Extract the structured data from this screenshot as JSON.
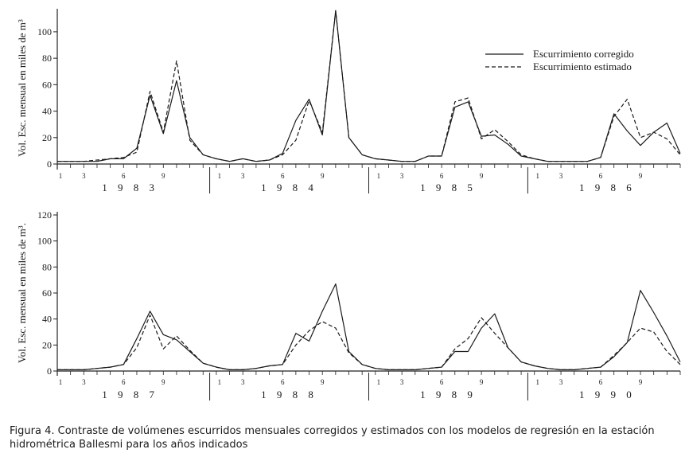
{
  "caption": "Figura 4. Contraste de volúmenes escurridos mensuales corregidos y estimados con los modelos de regresión en la estación hidrométrica Ballesmi para los años indicados",
  "chart_data": [
    {
      "type": "line",
      "ylabel": "Vol. Esc. mensual en miles de m³",
      "ylim": [
        0,
        115
      ],
      "yticks": [
        0,
        20,
        40,
        60,
        80,
        100
      ],
      "years": [
        "1 9 8 3",
        "1 9 8 4",
        "1 9 8 5",
        "1 9 8 6"
      ],
      "month_labels": [
        "1",
        "3",
        "6",
        "9"
      ],
      "month_label_positions": [
        1,
        3,
        6,
        9
      ],
      "legend": {
        "placement": "top-right",
        "entries": [
          "Escurrimiento corregido",
          "Escurrimiento estimado"
        ]
      },
      "series": [
        {
          "name": "Escurrimiento corregido",
          "style": "solid",
          "values": [
            2,
            2,
            2,
            2,
            4,
            4,
            12,
            52,
            23,
            63,
            20,
            7,
            4,
            2,
            4,
            2,
            3,
            8,
            33,
            49,
            22,
            116,
            20,
            7,
            4,
            3,
            2,
            2,
            6,
            6,
            43,
            47,
            21,
            22,
            15,
            6,
            4,
            2,
            2,
            2,
            2,
            5,
            38,
            25,
            14,
            24,
            31,
            8
          ]
        },
        {
          "name": "Escurrimiento estimado",
          "style": "dashed",
          "values": [
            2,
            2,
            2,
            3,
            4,
            5,
            9,
            55,
            24,
            78,
            18,
            7,
            4,
            2,
            4,
            2,
            3,
            7,
            18,
            48,
            24,
            116,
            20,
            7,
            4,
            3,
            2,
            2,
            6,
            6,
            47,
            50,
            19,
            26,
            17,
            7,
            4,
            2,
            2,
            2,
            2,
            5,
            36,
            49,
            20,
            24,
            19,
            7
          ]
        }
      ]
    },
    {
      "type": "line",
      "ylabel": "Vol. Esc. mensual en miles de m³.",
      "ylim": [
        0,
        120
      ],
      "yticks": [
        0,
        20,
        40,
        60,
        80,
        100,
        120
      ],
      "years": [
        "1 9 8 7",
        "1 9 8 8",
        "1 9 8 9",
        "1 9 9 0"
      ],
      "month_labels": [
        "1",
        "3",
        "6",
        "9"
      ],
      "month_label_positions": [
        1,
        3,
        6,
        9
      ],
      "series": [
        {
          "name": "Escurrimiento corregido",
          "style": "solid",
          "values": [
            1,
            1,
            1,
            2,
            3,
            5,
            25,
            46,
            28,
            24,
            15,
            6,
            3,
            1,
            1,
            2,
            4,
            5,
            29,
            23,
            46,
            67,
            15,
            5,
            2,
            1,
            1,
            1,
            2,
            3,
            15,
            15,
            33,
            44,
            18,
            7,
            4,
            2,
            1,
            1,
            2,
            3,
            11,
            22,
            62,
            45,
            27,
            7
          ]
        },
        {
          "name": "Escurrimiento estimado",
          "style": "dashed",
          "values": [
            1,
            1,
            1,
            2,
            3,
            5,
            18,
            43,
            17,
            27,
            16,
            6,
            3,
            1,
            1,
            2,
            4,
            5,
            20,
            31,
            38,
            33,
            14,
            5,
            2,
            1,
            1,
            1,
            2,
            3,
            17,
            25,
            41,
            29,
            18,
            7,
            4,
            2,
            1,
            1,
            2,
            3,
            12,
            22,
            33,
            30,
            15,
            5
          ]
        }
      ]
    }
  ]
}
